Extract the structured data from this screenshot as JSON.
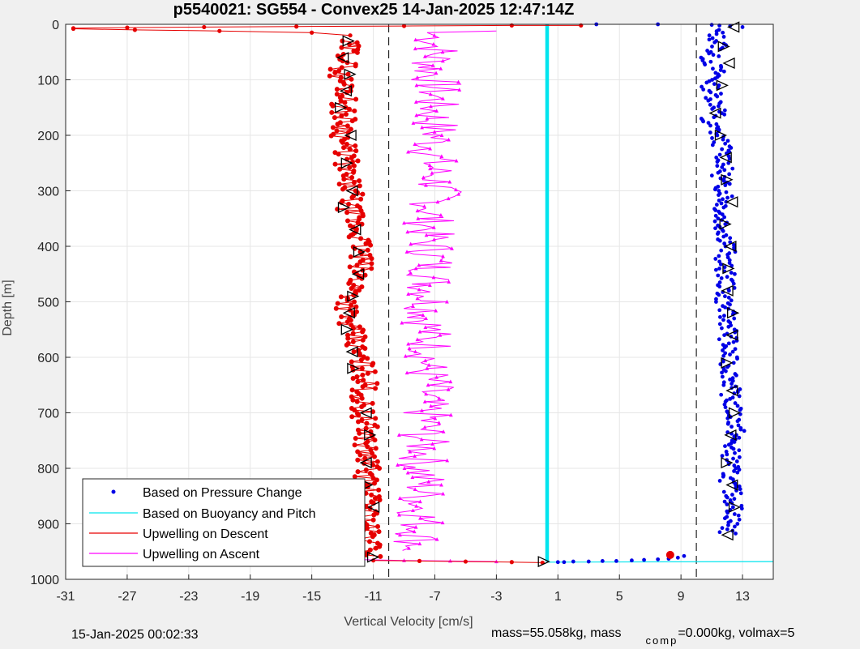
{
  "chart_data": {
    "type": "scatter",
    "title": "p5540021: SG554 - Convex25 14-Jan-2025 12:47:14Z",
    "xlabel": "Vertical Velocity [cm/s]",
    "ylabel": "Depth [m]",
    "xlim": [
      -31,
      15
    ],
    "ylim": [
      0,
      1000
    ],
    "y_reversed": true,
    "grid": true,
    "xticks": [
      -31,
      -27,
      -23,
      -19,
      -15,
      -11,
      -7,
      -3,
      1,
      5,
      9,
      13
    ],
    "yticks": [
      0,
      100,
      200,
      300,
      400,
      500,
      600,
      700,
      800,
      900,
      1000
    ],
    "reference_lines_x": [
      -10,
      10
    ],
    "legend_position": "bottom-left",
    "series": [
      {
        "name": "Based on Pressure Change",
        "color": "#0000e6",
        "marker": "dot",
        "profile_x": [
          11.2,
          11.5,
          10.8,
          11.4,
          10.9,
          11.3,
          11.6,
          10.5,
          11.2,
          11.7,
          11.9,
          11.5,
          12.0,
          11.6,
          11.8,
          12.1,
          11.7,
          12.0,
          11.8,
          11.9,
          12.2,
          12.0,
          12.1,
          12.3,
          12.2,
          12.4,
          12.6,
          12.2,
          12.3,
          12.1,
          12.4,
          12.5,
          12.0
        ],
        "profile_y": [
          10,
          40,
          60,
          90,
          110,
          140,
          160,
          170,
          190,
          220,
          250,
          280,
          310,
          340,
          370,
          400,
          430,
          460,
          490,
          520,
          550,
          580,
          610,
          640,
          670,
          700,
          730,
          760,
          790,
          820,
          850,
          880,
          920
        ],
        "surface_x": [
          13,
          12.2,
          11.5,
          11,
          7.5,
          3.5
        ],
        "surface_y": [
          5,
          3,
          2,
          1,
          0,
          0
        ],
        "bottom_x": [
          9.2,
          8.8,
          8.2,
          7.5,
          6.6,
          5.8,
          4.8,
          3.9,
          3.0,
          2.0,
          1.4,
          1.0
        ],
        "bottom_y": [
          958,
          961,
          963,
          964,
          965,
          966,
          967,
          967,
          968,
          968,
          969,
          969
        ]
      },
      {
        "name": "Based on Buoyancy and Pitch",
        "color": "#00e5ee",
        "marker": "line",
        "x": [
          0.3,
          0.3
        ],
        "y": [
          0,
          968
        ],
        "bottom_x": [
          0.3,
          15
        ],
        "bottom_y": [
          969,
          968
        ]
      },
      {
        "name": "Upwelling on Descent",
        "color": "#e60000",
        "marker": "dot-line",
        "surface_x": [
          2.5,
          -2,
          -9,
          -16,
          -22,
          -27,
          -30.5,
          -30.5,
          -26.5,
          -21,
          -15,
          -12.5
        ],
        "surface_y": [
          2,
          2,
          3,
          4,
          5,
          6,
          7,
          8,
          10,
          12,
          15,
          20
        ],
        "profile_x": [
          -12.8,
          -12.5,
          -13.2,
          -12.6,
          -13.0,
          -12.8,
          -13.0,
          -12.7,
          -12.9,
          -12.4,
          -12.6,
          -12.2,
          -11.9,
          -11.8,
          -11.9,
          -12.1,
          -12.5,
          -12.8,
          -12.3,
          -12.1,
          -11.6,
          -11.5,
          -11.8,
          -11.6,
          -11.4,
          -11.5,
          -11.3,
          -11.5,
          -11.2,
          -11.4,
          -11.3,
          -11.0
        ],
        "profile_y": [
          30,
          60,
          90,
          120,
          150,
          180,
          210,
          240,
          270,
          300,
          330,
          360,
          380,
          410,
          440,
          470,
          500,
          530,
          560,
          590,
          620,
          650,
          680,
          710,
          740,
          770,
          800,
          830,
          860,
          890,
          920,
          960
        ],
        "bottom_x": [
          -11,
          -8,
          -5,
          -2,
          0,
          8.3
        ],
        "bottom_y": [
          966,
          967,
          968,
          969,
          970,
          956
        ]
      },
      {
        "name": "Upwelling on Ascent",
        "color": "#ff00ff",
        "marker": "triangle-line",
        "surface_x": [
          -3,
          -7.5
        ],
        "surface_y": [
          12,
          15
        ],
        "profile_x": [
          -7.0,
          -6.8,
          -7.2,
          -6.9,
          -7.1,
          -7.0,
          -6.9,
          -7.2,
          -7.1,
          -6.8,
          -7.0,
          -7.3,
          -7.4,
          -7.2,
          -7.1,
          -7.3,
          -7.2,
          -7.5,
          -7.4,
          -7.2,
          -7.6,
          -7.3,
          -7.8,
          -7.5,
          -7.8,
          -7.6,
          -7.9,
          -7.7,
          -7.9,
          -7.8,
          -8.0,
          -8.2
        ],
        "profile_y": [
          20,
          50,
          80,
          110,
          140,
          170,
          200,
          230,
          260,
          290,
          320,
          350,
          380,
          410,
          440,
          470,
          500,
          530,
          560,
          590,
          620,
          650,
          680,
          710,
          740,
          770,
          800,
          830,
          860,
          890,
          920,
          950
        ],
        "bottom_x": [
          -13,
          -9,
          -6,
          -3
        ],
        "bottom_y": [
          964,
          966,
          967,
          968
        ]
      }
    ],
    "annotations": [
      {
        "marker": "triangle-outline",
        "x": [
          -12.6,
          -13.0,
          -12.5,
          -12.8,
          -13.1,
          -12.5,
          -12.7,
          -12.4,
          -12.9,
          -12.2,
          -11.9,
          -12.0,
          -12.3,
          -12.6,
          -12.7,
          -12.4,
          -12.3,
          -11.5,
          -11.2,
          -11.5,
          -11.4,
          -11.0,
          -11.0
        ],
        "y": [
          30,
          60,
          90,
          120,
          150,
          200,
          250,
          300,
          330,
          370,
          410,
          450,
          490,
          520,
          550,
          590,
          620,
          700,
          740,
          790,
          830,
          870,
          960
        ]
      },
      {
        "marker": "triangle-outline",
        "x": [
          12.4,
          11.8,
          12.1,
          11.7,
          11.2,
          11.6,
          11.9,
          12.0,
          12.3,
          11.9,
          12.2,
          12.1,
          12.0,
          12.4,
          12.3,
          12.0,
          12.3,
          12.5,
          12.2,
          12.0,
          12.3,
          12.5,
          12.0
        ],
        "y": [
          5,
          40,
          70,
          110,
          160,
          200,
          240,
          280,
          320,
          360,
          400,
          440,
          480,
          520,
          560,
          610,
          660,
          700,
          740,
          790,
          830,
          870,
          920
        ]
      },
      {
        "marker": "triangle-outline",
        "x": [
          0.1
        ],
        "y": [
          968
        ]
      }
    ]
  },
  "legend": {
    "items": [
      "Based on Pressure Change",
      "Based on Buoyancy and Pitch",
      "Upwelling on Descent",
      "Upwelling on Ascent"
    ]
  },
  "footer": {
    "timestamp": "15-Jan-2025 00:02:33",
    "mass_text": "mass=55.058kg, mass",
    "comp_sub": "comp",
    "comp_text": "=0.000kg, volmax=5"
  }
}
